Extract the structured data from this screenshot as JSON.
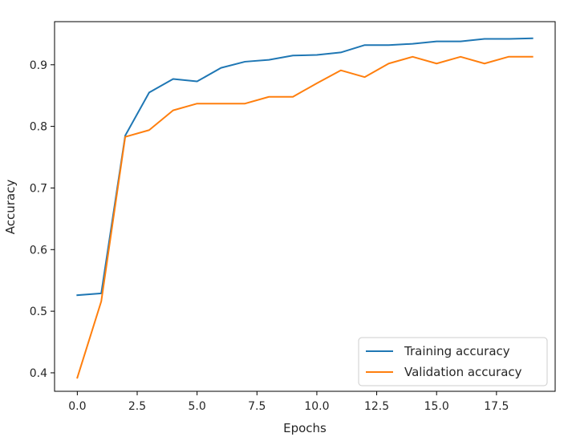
{
  "chart_data": {
    "type": "line",
    "title": "",
    "xlabel": "Epochs",
    "ylabel": "Accuracy",
    "xlim": [
      -0.95,
      19.95
    ],
    "ylim": [
      0.37,
      0.97
    ],
    "x_ticks": [
      0.0,
      2.5,
      5.0,
      7.5,
      10.0,
      12.5,
      15.0,
      17.5
    ],
    "x_tick_labels": [
      "0.0",
      "2.5",
      "5.0",
      "7.5",
      "10.0",
      "12.5",
      "15.0",
      "17.5"
    ],
    "y_ticks": [
      0.4,
      0.5,
      0.6,
      0.7,
      0.8,
      0.9
    ],
    "y_tick_labels": [
      "0.4",
      "0.5",
      "0.6",
      "0.7",
      "0.8",
      "0.9"
    ],
    "grid": false,
    "legend_position": "lower-right",
    "x": [
      0,
      1,
      2,
      3,
      4,
      5,
      6,
      7,
      8,
      9,
      10,
      11,
      12,
      13,
      14,
      15,
      16,
      17,
      18,
      19
    ],
    "series": [
      {
        "name": "Training accuracy",
        "color": "#1f77b4",
        "values": [
          0.526,
          0.529,
          0.785,
          0.855,
          0.877,
          0.873,
          0.895,
          0.905,
          0.908,
          0.915,
          0.916,
          0.92,
          0.932,
          0.932,
          0.934,
          0.938,
          0.938,
          0.942,
          0.942,
          0.943
        ]
      },
      {
        "name": "Validation accuracy",
        "color": "#ff7f0e",
        "values": [
          0.392,
          0.516,
          0.783,
          0.794,
          0.826,
          0.837,
          0.837,
          0.837,
          0.848,
          0.848,
          0.87,
          0.891,
          0.88,
          0.902,
          0.913,
          0.902,
          0.913,
          0.902,
          0.913,
          0.913
        ]
      }
    ]
  }
}
